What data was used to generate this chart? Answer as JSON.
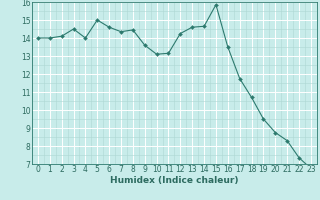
{
  "x": [
    0,
    1,
    2,
    3,
    4,
    5,
    6,
    7,
    8,
    9,
    10,
    11,
    12,
    13,
    14,
    15,
    16,
    17,
    18,
    19,
    20,
    21,
    22,
    23
  ],
  "y": [
    14.0,
    14.0,
    14.1,
    14.5,
    14.0,
    15.0,
    14.6,
    14.35,
    14.45,
    13.6,
    13.1,
    13.15,
    14.25,
    14.6,
    14.65,
    15.85,
    13.5,
    11.75,
    10.7,
    9.5,
    8.75,
    8.3,
    7.35,
    6.75
  ],
  "line_color": "#2d7a6e",
  "marker": "D",
  "marker_size": 2.0,
  "bg_color": "#c8ecea",
  "grid_color": "#ffffff",
  "grid_minor_color": "#aed8d4",
  "xlabel": "Humidex (Indice chaleur)",
  "xlim": [
    -0.5,
    23.5
  ],
  "ylim": [
    7,
    16
  ],
  "yticks": [
    7,
    8,
    9,
    10,
    11,
    12,
    13,
    14,
    15,
    16
  ],
  "xticks": [
    0,
    1,
    2,
    3,
    4,
    5,
    6,
    7,
    8,
    9,
    10,
    11,
    12,
    13,
    14,
    15,
    16,
    17,
    18,
    19,
    20,
    21,
    22,
    23
  ],
  "xlabel_fontsize": 6.5,
  "tick_fontsize": 5.5,
  "tick_color": "#2d6b60",
  "label_color": "#2d6b60",
  "axis_color": "#2d7a6e",
  "line_width": 0.8
}
